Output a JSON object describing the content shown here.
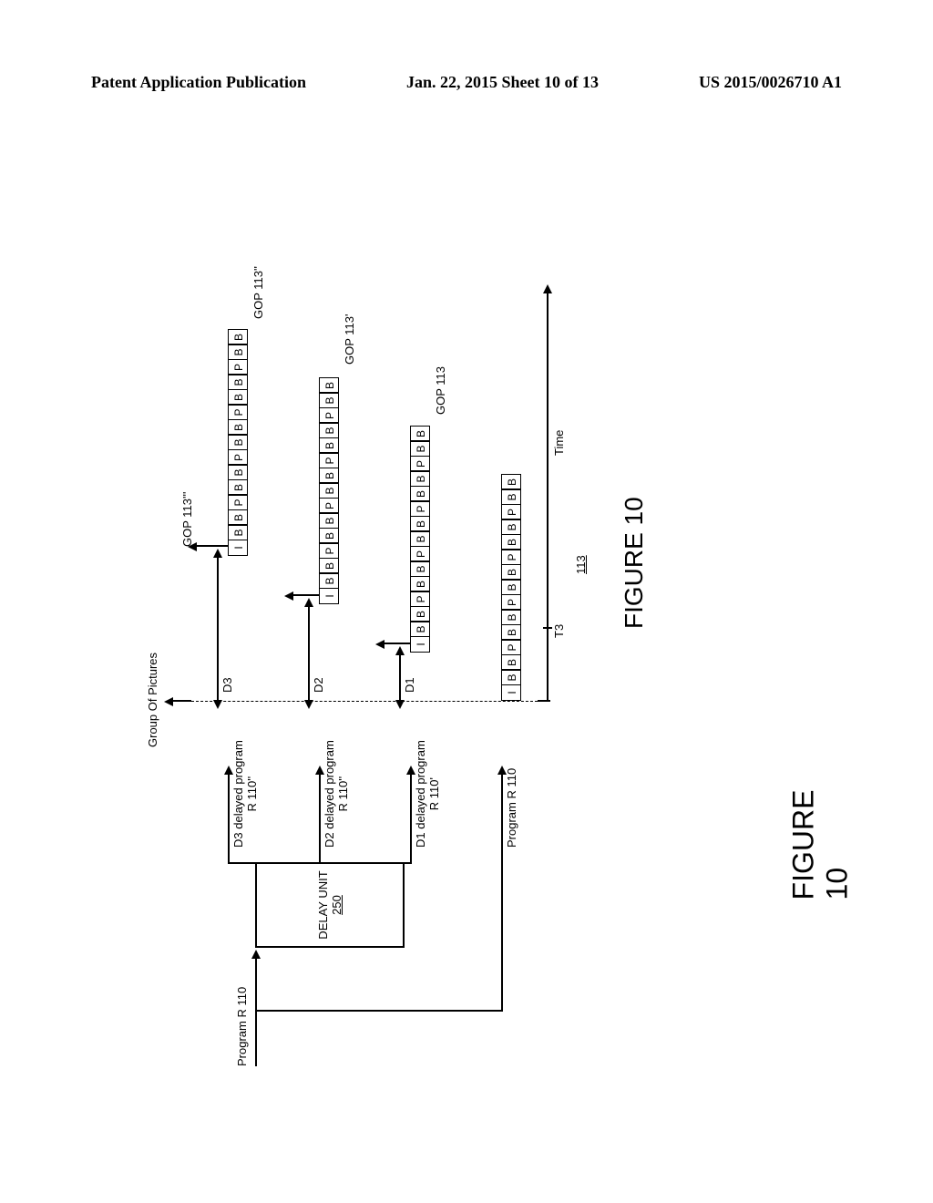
{
  "header": {
    "left": "Patent Application Publication",
    "center": "Jan. 22, 2015  Sheet 10 of 13",
    "right": "US 2015/0026710 A1"
  },
  "diagram": {
    "title_top": "Group Of Pictures",
    "program_in": "Program R 110",
    "delay_unit": {
      "line1": "DELAY UNIT",
      "line2": "250"
    },
    "outputs": {
      "d3": "D3 delayed program\nR 110''",
      "d2": "D2 delayed program\nR 110''",
      "d1": "D1 delayed program\nR 110'",
      "prog": "Program R 110"
    },
    "delays": {
      "d3": "D3",
      "d2": "D2",
      "d1": "D1"
    },
    "gop_labels": {
      "g113_3": "GOP 113'''",
      "g113_2": "GOP 113''",
      "g113_1": "GOP 113'",
      "g113": "GOP 113"
    },
    "gop_pattern": [
      "I",
      "B",
      "B",
      "P",
      "B",
      "B",
      "P",
      "B",
      "B",
      "P",
      "B",
      "B",
      "P",
      "B",
      "B"
    ],
    "axis": {
      "time": "Time",
      "t3": "T3",
      "ref113": "113"
    },
    "figure_caption": "FIGURE 10"
  },
  "outer_caption": "FIGURE 10",
  "colors": {
    "fg": "#000000",
    "bg": "#ffffff"
  }
}
